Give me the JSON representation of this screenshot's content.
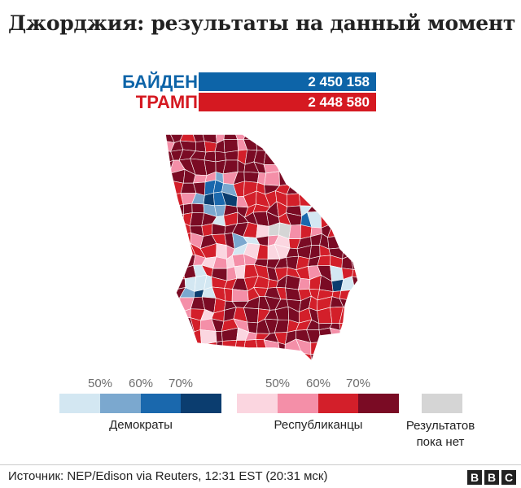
{
  "title": "Джорджия: результаты на данный момент",
  "candidates": [
    {
      "name": "БАЙДЕН",
      "votes": "2 450 158",
      "color": "#0d64a8"
    },
    {
      "name": "ТРАМП",
      "votes": "2 448 580",
      "color": "#d51921"
    }
  ],
  "map": {
    "region": "Georgia",
    "colors": {
      "dem": [
        "#d3e7f2",
        "#7ba8cf",
        "#1a68ad",
        "#0b3d6f"
      ],
      "rep": [
        "#fbd6e0",
        "#f48fa8",
        "#d31f2a",
        "#7a0b24"
      ],
      "none": "#d5d5d5"
    }
  },
  "legend": {
    "dem_ticks": [
      "50%",
      "60%",
      "70%"
    ],
    "rep_ticks": [
      "50%",
      "60%",
      "70%"
    ],
    "dem_label": "Демократы",
    "rep_label": "Республиканцы",
    "no_results_line1": "Результатов",
    "no_results_line2": "пока нет"
  },
  "source": "Источник: NEP/Edison via Reuters, 12:31 EST (20:31 мск)",
  "logo": {
    "letters": [
      "B",
      "B",
      "C"
    ]
  }
}
